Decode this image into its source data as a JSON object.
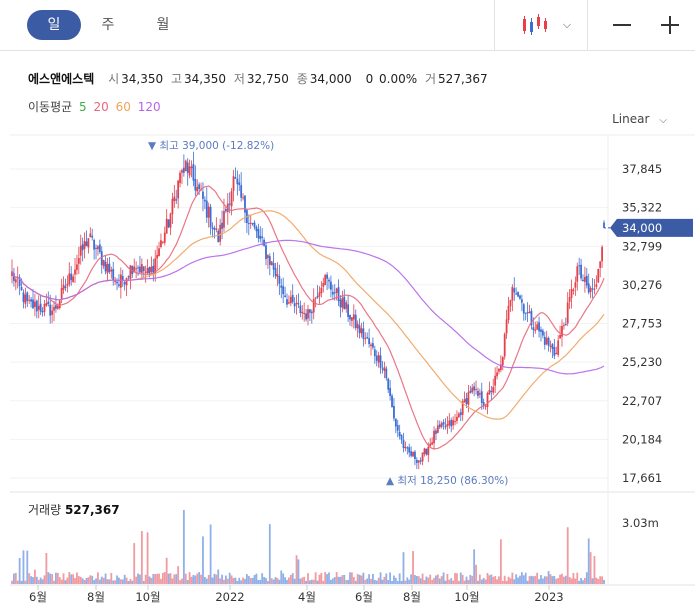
{
  "tabs": [
    {
      "label": "일",
      "active": true
    },
    {
      "label": "주",
      "active": false
    },
    {
      "label": "월",
      "active": false
    }
  ],
  "header": {
    "chart_type_icon": "candlestick-icon",
    "zoom_out_icon": "minus-icon",
    "zoom_in_icon": "plus-icon"
  },
  "stock": {
    "name": "에스앤에스텍",
    "open_label": "시",
    "open": "34,350",
    "high_label": "고",
    "high": "34,350",
    "low_label": "저",
    "low": "32,750",
    "close_label": "종",
    "close": "34,000",
    "change": "0",
    "change_pct": "0.00%",
    "volume_label": "거",
    "volume": "527,367"
  },
  "ma": {
    "label": "이동평균",
    "periods": [
      "5",
      "20",
      "60",
      "120"
    ],
    "colors": [
      "#3fae49",
      "#e8677a",
      "#f0a35e",
      "#b565e8"
    ]
  },
  "scale_mode": "Linear",
  "volume_panel": {
    "label": "거래량",
    "value": "527,367",
    "axis_label": "3.03m"
  },
  "chart_data": {
    "type": "candlestick",
    "y_ticks": [
      "37,845",
      "35,322",
      "32,799",
      "30,276",
      "27,753",
      "25,230",
      "22,707",
      "20,184",
      "17,661"
    ],
    "y_tick_values": [
      37845,
      35322,
      32799,
      30276,
      27753,
      25230,
      22707,
      20184,
      17661
    ],
    "x_ticks": [
      "6월",
      "8월",
      "10월",
      "2022",
      "4월",
      "6월",
      "8월",
      "10월",
      "2023"
    ],
    "current_price_label": "34,000",
    "high_annotation": "▼ 최고 39,000 (-12.82%)",
    "low_annotation": "▲ 최저 18,250 (86.30%)",
    "colors": {
      "up": "#e5404b",
      "down": "#3b6dd4",
      "current": "#3b5ba5",
      "annot": "#5b7cc0"
    },
    "anchors": [
      [
        0,
        31000
      ],
      [
        8,
        29000
      ],
      [
        22,
        28600
      ],
      [
        32,
        31200
      ],
      [
        40,
        33400
      ],
      [
        48,
        31800
      ],
      [
        56,
        30300
      ],
      [
        64,
        31700
      ],
      [
        72,
        30900
      ],
      [
        82,
        34400
      ],
      [
        90,
        38400
      ],
      [
        100,
        35800
      ],
      [
        108,
        33300
      ],
      [
        116,
        37100
      ],
      [
        125,
        34300
      ],
      [
        135,
        31900
      ],
      [
        145,
        29100
      ],
      [
        155,
        28300
      ],
      [
        163,
        30800
      ],
      [
        170,
        29600
      ],
      [
        180,
        27700
      ],
      [
        188,
        26200
      ],
      [
        195,
        24900
      ],
      [
        200,
        21500
      ],
      [
        206,
        19400
      ],
      [
        214,
        18800
      ],
      [
        222,
        20700
      ],
      [
        232,
        21300
      ],
      [
        240,
        23400
      ],
      [
        248,
        22600
      ],
      [
        256,
        24900
      ],
      [
        262,
        30500
      ],
      [
        270,
        28300
      ],
      [
        278,
        26900
      ],
      [
        284,
        25800
      ],
      [
        290,
        28100
      ],
      [
        296,
        31300
      ],
      [
        302,
        29800
      ],
      [
        306,
        30100
      ],
      [
        310,
        34000
      ]
    ],
    "count": 311
  }
}
